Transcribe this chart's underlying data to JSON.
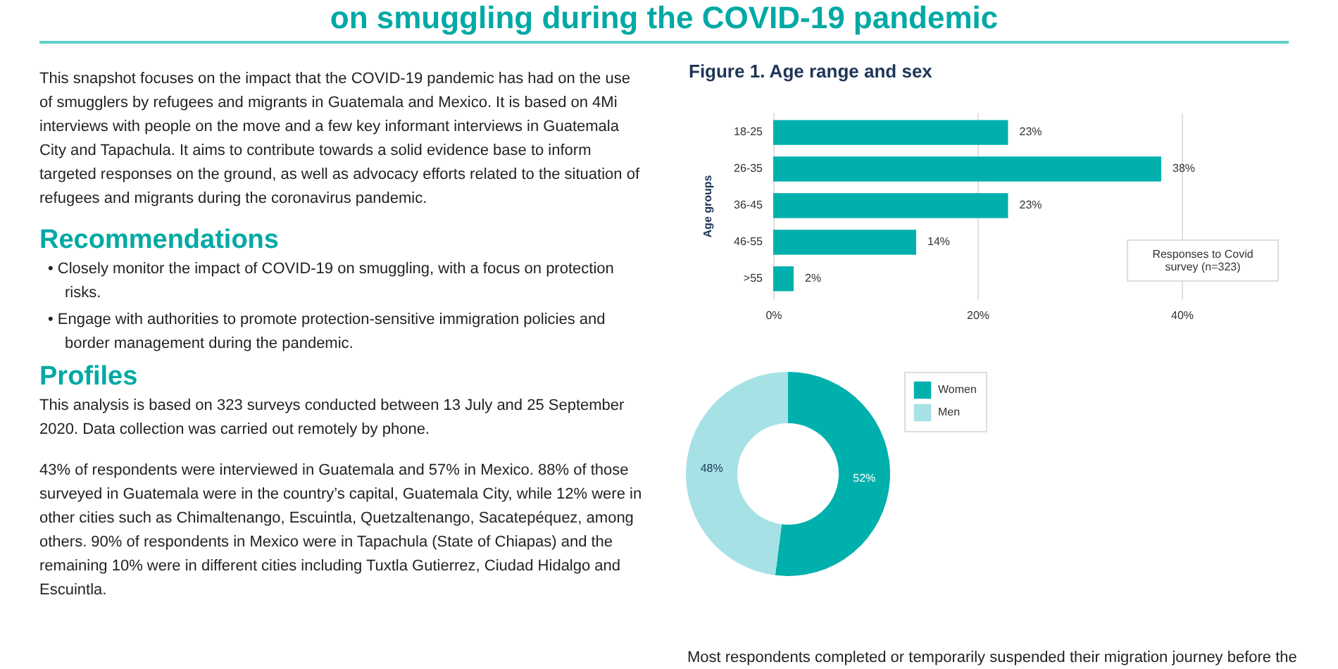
{
  "chart_data": [
    {
      "type": "other",
      "title": "on smuggling during the COVID-19 pandemic",
      "annotations": [
        "This snapshot focuses on the impact that the COVID-19 pandemic has had on the use of smugglers by refugees and migrants in Guatemala and Mexico. It is based on 4Mi interviews with people on the move and a few key informant interviews in Guatemala City and Tapachula. It aims to contribute towards a solid evidence base to inform targeted responses on the ground, as well as advocacy efforts related to the situation of refugees and migrants during the coronavirus pandemic."
      ]
    },
    {
      "type": "other",
      "title": "Recommendations",
      "annotations": [
        "•  Closely monitor the impact of COVID-19 on smuggling, with a focus on protection risks.",
        "•  Engage with authorities to promote protection-sensitive immigration policies and border management during the pandemic."
      ]
    },
    {
      "type": "other",
      "title": "Profiles",
      "annotations": [
        "This analysis is based on 323 surveys conducted between 13 July and 25 September 2020. Data collection was carried out remotely by phone.",
        "43% of respondents were interviewed in Guatemala and 57% in Mexico. 88% of those surveyed in Guatemala were in the country’s capital, Guatemala City, while 12% were in other cities such as Chimaltenango, Escuintla, Quetzaltenango, Sacatepéquez, among others. 90% of respondents in Mexico were in Tapachula (State of Chiapas) and the remaining 10% were in different cities including Tuxtla Gutierrez, Ciudad Hidalgo and Escuintla."
      ]
    },
    {
      "type": "bar",
      "orientation": "horizontal",
      "title": "Figure 1. Age range and sex",
      "ylabel": "Age groups",
      "categories": [
        "18-25",
        "26-35",
        "36-45",
        "46-55",
        ">55"
      ],
      "values": [
        23,
        38,
        23,
        14,
        2
      ],
      "value_labels": [
        "23%",
        "38%",
        "23%",
        "14%",
        "2%"
      ],
      "color": "#00b0ad",
      "xlim": [
        0,
        40
      ],
      "xticks": [
        {
          "value": 0,
          "label": "0%"
        },
        {
          "value": 20,
          "label": "20%"
        },
        {
          "value": 40,
          "label": "40%"
        }
      ],
      "grid": "x",
      "annotations": [
        "Responses to Covid survey (n=323)"
      ]
    },
    {
      "type": "donut",
      "categories": [
        "Women",
        "Men"
      ],
      "values": [
        52,
        48
      ],
      "colors": [
        "#00b0ad",
        "#a6e1e5"
      ],
      "value_labels": [
        "52%",
        "48%"
      ],
      "legend": "right",
      "annotations": [
        "Most respondents completed or temporarily suspended their migration journey before the"
      ]
    }
  ]
}
